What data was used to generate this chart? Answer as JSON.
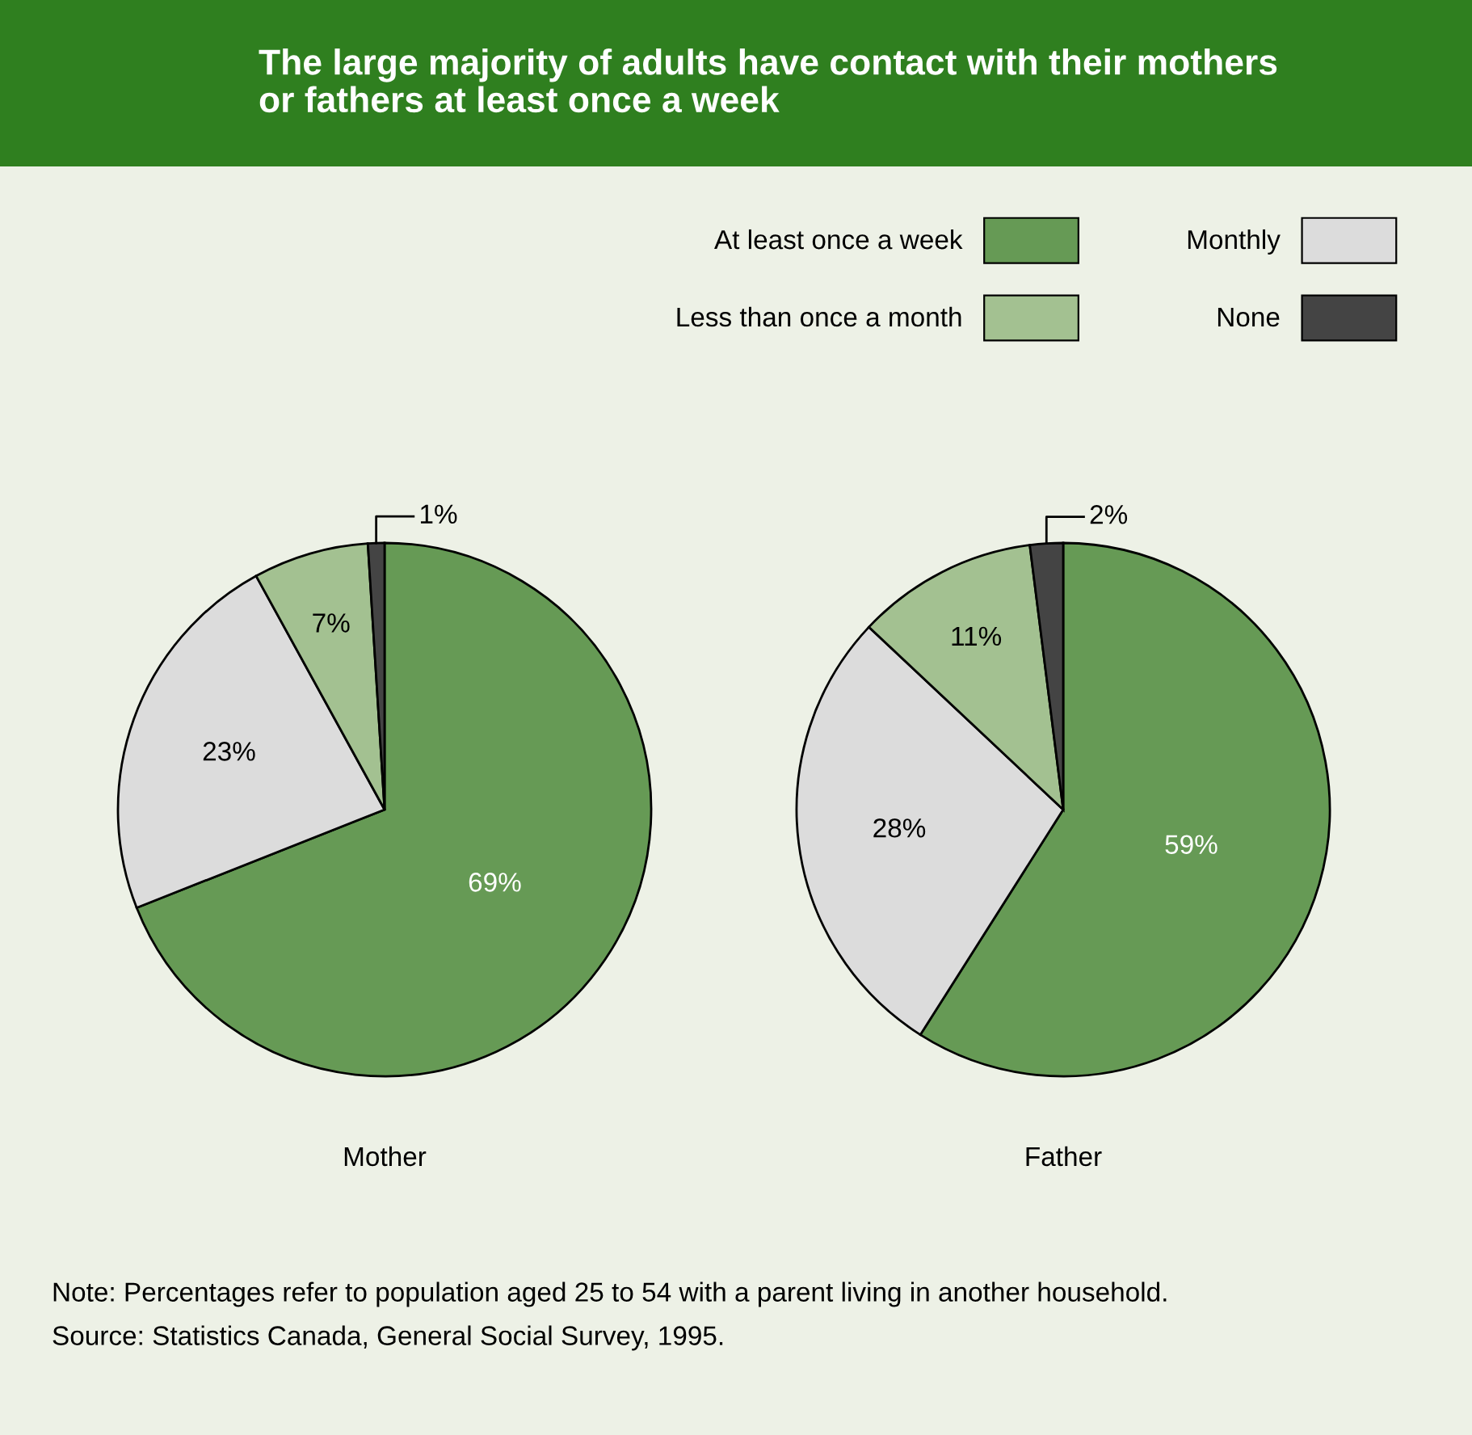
{
  "chart_data": [
    {
      "type": "pie",
      "title": "The large majority of adults have contact with their mothers\nor fathers at least once a week",
      "categories": [
        "At least once a week",
        "Monthly",
        "Less than once a month",
        "None"
      ],
      "values": [
        69,
        23,
        7,
        1
      ],
      "value_labels": [
        "69%",
        "23%",
        "7%",
        "1%"
      ],
      "colors": [
        "#669a55",
        "#dcdcdc",
        "#a3c191",
        "#444444"
      ],
      "xlabel": "Mother",
      "legend": "top right",
      "annotations": [
        "Note: Percentages refer to population aged 25 to 54 with a parent living in another household.",
        "Source: Statistics Canada, General Social Survey, 1995."
      ]
    },
    {
      "type": "pie",
      "categories": [
        null,
        null,
        null,
        null
      ],
      "values": [
        59,
        28,
        11,
        2
      ],
      "value_labels": [
        "59%",
        "28%",
        "11%",
        "2%"
      ],
      "colors": [
        "#669a55",
        "#dcdcdc",
        "#a3c191",
        "#444444"
      ],
      "xlabel": "Father"
    }
  ]
}
